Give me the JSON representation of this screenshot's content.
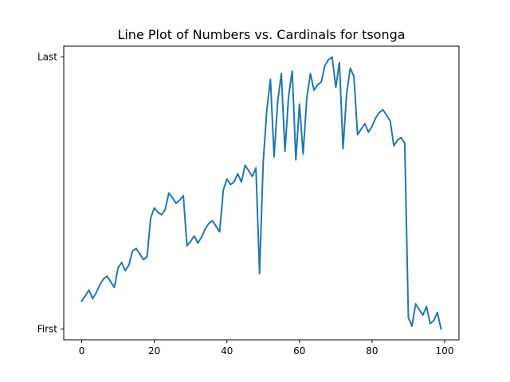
{
  "chart_data": {
    "type": "line",
    "title": "Line Plot of Numbers vs. Cardinals for tsonga",
    "xlabel": "",
    "ylabel": "",
    "xlim": [
      -4.95,
      103.95
    ],
    "ylim": [
      -0.04,
      1.04
    ],
    "x_ticks": [
      0,
      20,
      40,
      60,
      80,
      100
    ],
    "y_ticks": [
      {
        "value": 0,
        "label": "First"
      },
      {
        "value": 1,
        "label": "Last"
      }
    ],
    "grid": false,
    "legend": "none",
    "series": [
      {
        "color": "#1f77b4",
        "x": [
          0,
          1,
          2,
          3,
          4,
          5,
          6,
          7,
          8,
          9,
          10,
          11,
          12,
          13,
          14,
          15,
          16,
          17,
          18,
          19,
          20,
          21,
          22,
          23,
          24,
          25,
          26,
          27,
          28,
          29,
          30,
          31,
          32,
          33,
          34,
          35,
          36,
          37,
          38,
          39,
          40,
          41,
          42,
          43,
          44,
          45,
          46,
          47,
          48,
          49,
          50,
          51,
          52,
          53,
          54,
          55,
          56,
          57,
          58,
          59,
          60,
          61,
          62,
          63,
          64,
          65,
          66,
          67,
          68,
          69,
          70,
          71,
          72,
          73,
          74,
          75,
          76,
          77,
          78,
          79,
          80,
          81,
          82,
          83,
          84,
          85,
          86,
          87,
          88,
          89,
          90,
          91,
          92,
          93,
          94,
          95,
          96,
          97,
          98,
          99
        ],
        "y": [
          0.102,
          0.122,
          0.143,
          0.112,
          0.133,
          0.163,
          0.184,
          0.194,
          0.173,
          0.153,
          0.224,
          0.245,
          0.214,
          0.235,
          0.286,
          0.296,
          0.276,
          0.255,
          0.265,
          0.408,
          0.445,
          0.429,
          0.42,
          0.439,
          0.5,
          0.482,
          0.462,
          0.474,
          0.49,
          0.306,
          0.322,
          0.342,
          0.316,
          0.337,
          0.367,
          0.388,
          0.398,
          0.378,
          0.357,
          0.51,
          0.551,
          0.531,
          0.541,
          0.571,
          0.54,
          0.602,
          0.582,
          0.561,
          0.592,
          0.204,
          0.612,
          0.806,
          0.918,
          0.633,
          0.837,
          0.939,
          0.653,
          0.857,
          0.949,
          0.622,
          0.827,
          0.643,
          0.847,
          0.939,
          0.878,
          0.898,
          0.908,
          0.969,
          0.99,
          1.0,
          0.888,
          0.98,
          0.663,
          0.867,
          0.959,
          0.929,
          0.714,
          0.735,
          0.755,
          0.724,
          0.745,
          0.776,
          0.796,
          0.806,
          0.786,
          0.765,
          0.673,
          0.694,
          0.704,
          0.684,
          0.041,
          0.01,
          0.092,
          0.071,
          0.051,
          0.082,
          0.02,
          0.031,
          0.061,
          0.0
        ]
      }
    ]
  }
}
